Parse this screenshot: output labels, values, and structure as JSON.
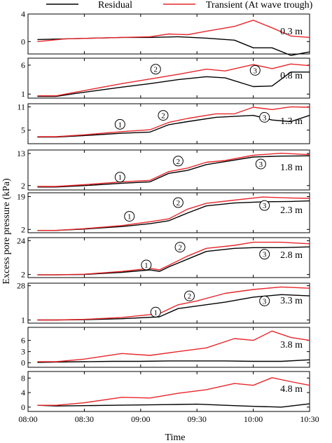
{
  "chart_data": {
    "type": "line",
    "ylabel": "Excess pore pressure (kPa)",
    "xlabel": "Time",
    "xticks": [
      "08:00",
      "08:30",
      "09:00",
      "09:30",
      "10:00",
      "10:30"
    ],
    "xlim": [
      0,
      150
    ],
    "legend": {
      "position": "top",
      "entries": [
        "Residual",
        "Transient (At wave trough)"
      ]
    },
    "colors": {
      "Residual": "#000000",
      "Transient (At wave trough)": "#e8262a"
    },
    "panels": [
      {
        "depth": "0.3 m",
        "ylim": [
          -1.8,
          4
        ],
        "yticks": [
          "4",
          "0"
        ],
        "ytick_values": [
          4,
          0
        ],
        "series": [
          {
            "name": "Residual",
            "x": [
              5,
              20,
              35,
              50,
              65,
              80,
              95,
              110,
              120,
              130,
              140,
              150
            ],
            "y": [
              0.3,
              0.4,
              0.5,
              0.6,
              0.6,
              0.7,
              0.5,
              0.2,
              -0.9,
              -0.9,
              -2.0,
              -1.5
            ]
          },
          {
            "name": "Transient (At wave trough)",
            "x": [
              5,
              20,
              35,
              50,
              65,
              75,
              85,
              95,
              110,
              120,
              130,
              140,
              150
            ],
            "y": [
              0.0,
              0.4,
              0.5,
              0.6,
              0.7,
              1.1,
              1.0,
              1.5,
              2.2,
              3.1,
              2.0,
              0.8,
              0.6
            ]
          }
        ],
        "annotations": []
      },
      {
        "depth": "0.8 m",
        "ylim": [
          0.3,
          7.2
        ],
        "yticks": [
          "6",
          "1"
        ],
        "ytick_values": [
          6,
          1
        ],
        "series": [
          {
            "name": "Residual",
            "x": [
              5,
              15,
              25,
              50,
              65,
              80,
              95,
              105,
              120,
              130,
              140,
              150
            ],
            "y": [
              0.6,
              0.6,
              1.1,
              2.2,
              2.8,
              3.5,
              4.0,
              3.8,
              2.3,
              2.4,
              4.8,
              4.8
            ]
          },
          {
            "name": "Transient (At wave trough)",
            "x": [
              5,
              15,
              25,
              50,
              65,
              80,
              95,
              105,
              120,
              130,
              140,
              150
            ],
            "y": [
              0.7,
              0.7,
              1.3,
              2.8,
              3.6,
              4.4,
              5.3,
              5.0,
              6.1,
              5.4,
              6.2,
              5.9
            ]
          }
        ],
        "annotations": [
          {
            "label": "2",
            "x": 68,
            "y": 5.3
          },
          {
            "label": "3",
            "x": 121,
            "y": 5.1
          }
        ]
      },
      {
        "depth": "1.3 m",
        "ylim": [
          1.5,
          11.8
        ],
        "yticks": [
          "11",
          "5"
        ],
        "ytick_values": [
          11,
          5
        ],
        "series": [
          {
            "name": "Residual",
            "x": [
              5,
              15,
              30,
              50,
              65,
              75,
              85,
              100,
              120,
              130,
              140,
              150
            ],
            "y": [
              3.2,
              3.2,
              3.6,
              4.2,
              4.5,
              6.4,
              7.2,
              8.3,
              8.8,
              7.6,
              7.2,
              8.8
            ]
          },
          {
            "name": "Transient (At wave trough)",
            "x": [
              5,
              15,
              30,
              50,
              65,
              75,
              85,
              100,
              110,
              120,
              130,
              140,
              150
            ],
            "y": [
              3.3,
              3.3,
              3.8,
              4.6,
              5.1,
              7.0,
              8.0,
              9.2,
              9.2,
              10.9,
              10.3,
              11.0,
              10.9
            ]
          }
        ],
        "annotations": [
          {
            "label": "1",
            "x": 49,
            "y": 6.5
          },
          {
            "label": "2",
            "x": 72,
            "y": 8.8
          },
          {
            "label": "3",
            "x": 126,
            "y": 8.3
          }
        ]
      },
      {
        "depth": "1.8 m",
        "ylim": [
          0.5,
          14.2
        ],
        "yticks": [
          "13",
          "2"
        ],
        "ytick_values": [
          13,
          2
        ],
        "series": [
          {
            "name": "Residual",
            "x": [
              5,
              15,
              30,
              50,
              65,
              75,
              85,
              95,
              105,
              120,
              135,
              150
            ],
            "y": [
              1.5,
              1.5,
              2.0,
              2.8,
              3.3,
              6.2,
              7.2,
              9.2,
              10.2,
              11.8,
              12.1,
              12.2
            ]
          },
          {
            "name": "Transient (At wave trough)",
            "x": [
              5,
              15,
              30,
              50,
              65,
              75,
              85,
              95,
              105,
              120,
              135,
              150
            ],
            "y": [
              1.7,
              1.7,
              2.3,
              3.3,
              3.8,
              6.8,
              8.0,
              10.0,
              10.6,
              12.4,
              13.1,
              12.6
            ]
          }
        ],
        "annotations": [
          {
            "label": "1",
            "x": 49,
            "y": 4.9
          },
          {
            "label": "2",
            "x": 80,
            "y": 10.4
          },
          {
            "label": "3",
            "x": 124,
            "y": 9.4
          }
        ]
      },
      {
        "depth": "2.3 m",
        "ylim": [
          0.3,
          21
        ],
        "yticks": [
          "19",
          "2"
        ],
        "ytick_values": [
          19,
          2
        ],
        "series": [
          {
            "name": "Residual",
            "x": [
              5,
              15,
              30,
              50,
              65,
              75,
              85,
              95,
              110,
              125,
              140,
              150
            ],
            "y": [
              1.5,
              1.5,
              2.2,
              3.5,
              5.0,
              6.5,
              10.5,
              14.2,
              15.7,
              16.3,
              16.5,
              16.8
            ]
          },
          {
            "name": "Transient (At wave trough)",
            "x": [
              5,
              15,
              30,
              50,
              65,
              75,
              85,
              95,
              110,
              125,
              140,
              150
            ],
            "y": [
              1.5,
              1.5,
              2.4,
              4.0,
              6.0,
              7.5,
              12.5,
              15.5,
              17.2,
              18.8,
              18.3,
              18.1
            ]
          }
        ],
        "annotations": [
          {
            "label": "1",
            "x": 54,
            "y": 8.8
          },
          {
            "label": "2",
            "x": 80,
            "y": 15.9
          },
          {
            "label": "3",
            "x": 126,
            "y": 14.4
          }
        ]
      },
      {
        "depth": "2.8 m",
        "ylim": [
          0,
          26
        ],
        "yticks": [
          "24",
          "2"
        ],
        "ytick_values": [
          24,
          2
        ],
        "series": [
          {
            "name": "Residual",
            "x": [
              5,
              15,
              30,
              50,
              65,
              70,
              75,
              85,
              95,
              110,
              120,
              135,
              150
            ],
            "y": [
              1.8,
              1.8,
              2.0,
              3.4,
              5.0,
              4.0,
              7.0,
              12.0,
              17.0,
              19.0,
              19.5,
              19.5,
              20.0
            ]
          },
          {
            "name": "Transient (At wave trough)",
            "x": [
              5,
              15,
              30,
              50,
              65,
              70,
              75,
              85,
              95,
              110,
              120,
              135,
              150
            ],
            "y": [
              1.8,
              1.8,
              2.2,
              4.0,
              6.0,
              5.0,
              8.0,
              14.0,
              19.0,
              21.0,
              23.0,
              23.0,
              22.0
            ]
          }
        ],
        "annotations": [
          {
            "label": "1",
            "x": 63,
            "y": 8.2
          },
          {
            "label": "2",
            "x": 81,
            "y": 19.8
          },
          {
            "label": "3",
            "x": 126,
            "y": 15.2
          }
        ]
      },
      {
        "depth": "3.3 m",
        "ylim": [
          -1.5,
          30
        ],
        "yticks": [
          "28",
          "1"
        ],
        "ytick_values": [
          28,
          1
        ],
        "series": [
          {
            "name": "Residual",
            "x": [
              5,
              15,
              30,
              50,
              70,
              80,
              90,
              105,
              120,
              135,
              150
            ],
            "y": [
              1.0,
              1.0,
              1.2,
              2.0,
              3.5,
              10.0,
              12.0,
              15.0,
              19.0,
              21.0,
              20.0
            ]
          },
          {
            "name": "Transient (At wave trough)",
            "x": [
              5,
              15,
              30,
              50,
              70,
              80,
              90,
              105,
              120,
              135,
              150
            ],
            "y": [
              1.0,
              1.0,
              1.5,
              3.0,
              6.0,
              13.0,
              16.0,
              22.0,
              25.0,
              27.0,
              26.0
            ]
          }
        ],
        "annotations": [
          {
            "label": "1",
            "x": 68,
            "y": 7.2
          },
          {
            "label": "2",
            "x": 86,
            "y": 20.0
          },
          {
            "label": "3",
            "x": 126,
            "y": 16.0
          }
        ]
      },
      {
        "depth": "3.8 m",
        "ylim": [
          -1.2,
          9.5
        ],
        "yticks": [
          "6",
          "3",
          "0"
        ],
        "ytick_values": [
          6,
          3,
          0
        ],
        "series": [
          {
            "name": "Residual",
            "x": [
              5,
              15,
              30,
              45,
              60,
              75,
              90,
              105,
              120,
              135,
              150
            ],
            "y": [
              0.1,
              0.2,
              0.3,
              0.4,
              0.4,
              0.5,
              0.5,
              0.5,
              0.4,
              0.4,
              0.8
            ]
          },
          {
            "name": "Transient (At wave trough)",
            "x": [
              5,
              15,
              30,
              50,
              65,
              80,
              95,
              110,
              120,
              130,
              140,
              150
            ],
            "y": [
              0.3,
              0.3,
              1.0,
              2.5,
              2.0,
              3.0,
              4.0,
              6.5,
              6.0,
              8.5,
              6.8,
              6.0
            ]
          }
        ],
        "annotations": []
      },
      {
        "depth": "4.8 m",
        "ylim": [
          -1.2,
          9.8
        ],
        "yticks": [
          "8",
          "4",
          "0"
        ],
        "ytick_values": [
          8,
          4,
          0
        ],
        "series": [
          {
            "name": "Residual",
            "x": [
              5,
              15,
              30,
              45,
              60,
              75,
              90,
              105,
              120,
              135,
              150
            ],
            "y": [
              0.5,
              0.3,
              0.4,
              0.5,
              0.6,
              0.7,
              0.8,
              0.5,
              0.2,
              0.0,
              0.9
            ]
          },
          {
            "name": "Transient (At wave trough)",
            "x": [
              5,
              15,
              30,
              50,
              65,
              80,
              95,
              110,
              120,
              130,
              140,
              150
            ],
            "y": [
              0.5,
              0.5,
              1.2,
              2.7,
              2.5,
              3.8,
              4.8,
              6.5,
              6.0,
              8.1,
              7.0,
              6.0
            ]
          }
        ],
        "annotations": []
      }
    ]
  }
}
